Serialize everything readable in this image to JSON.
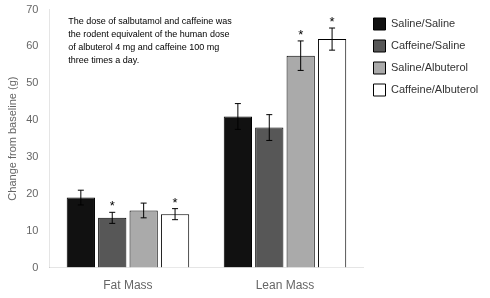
{
  "chart_data": {
    "type": "bar",
    "categories": [
      "Fat Mass",
      "Lean Mass"
    ],
    "series": [
      {
        "name": "Saline/Saline",
        "color": "#111111",
        "values": [
          19.0,
          41.0
        ],
        "errors": [
          2.0,
          3.5
        ],
        "significant": [
          false,
          false
        ]
      },
      {
        "name": "Caffeine/Saline",
        "color": "#575757",
        "values": [
          13.5,
          38.0
        ],
        "errors": [
          1.5,
          3.5
        ],
        "significant": [
          true,
          false
        ]
      },
      {
        "name": "Saline/Albuterol",
        "color": "#aaaaaa",
        "values": [
          15.5,
          57.5
        ],
        "errors": [
          2.0,
          4.0
        ],
        "significant": [
          false,
          true
        ]
      },
      {
        "name": "Caffeine/Albuterol",
        "color": "#ffffff",
        "values": [
          14.5,
          62.0
        ],
        "errors": [
          1.5,
          3.0
        ],
        "significant": [
          true,
          true
        ]
      }
    ],
    "significance_label": "*",
    "ylabel": "Change from baseline (g)",
    "ylim": [
      0,
      70
    ],
    "yticks": [
      0,
      10,
      20,
      30,
      40,
      50,
      60,
      70
    ],
    "annotation": "The dose of salbutamol and caffeine was\nthe rodent equivalent of the human dose\nof albuterol 4 mg and caffeine 100 mg\nthree times a day.",
    "grid": false,
    "legend": "right"
  }
}
